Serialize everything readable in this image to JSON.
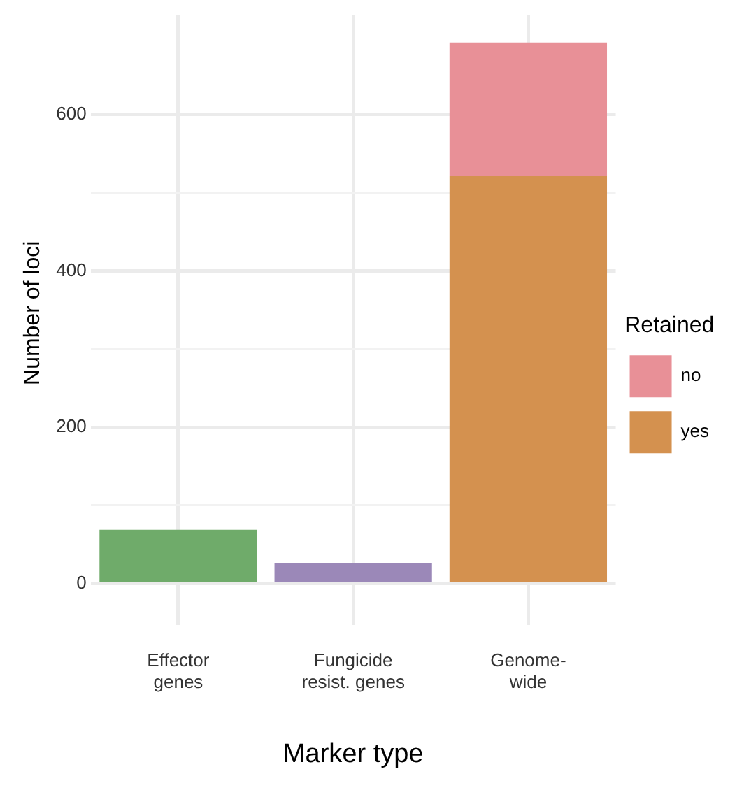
{
  "chart_data": {
    "type": "bar",
    "xlabel": "Marker type",
    "ylabel": "Number of loci",
    "legend_title": "Retained",
    "categories": [
      "Effector\ngenes",
      "Fungicide\nresist. genes",
      "Genome-\nwide"
    ],
    "series": [
      {
        "name": "yes",
        "color": "#d4914f",
        "colors": [
          "#6fab6a",
          "#9b88b8",
          "#d4914f"
        ],
        "values": [
          69,
          26,
          521
        ]
      },
      {
        "name": "no",
        "color": "#e89097",
        "values": [
          null,
          null,
          171
        ]
      }
    ],
    "stacked": true,
    "ylim": [
      -35,
      727
    ],
    "yticks": [
      0,
      {
        "value": 100,
        "label": null
      },
      200,
      {
        "value": 300,
        "label": null
      },
      400,
      {
        "value": 500,
        "label": null
      },
      600
    ],
    "grid": true,
    "legend": "right"
  }
}
